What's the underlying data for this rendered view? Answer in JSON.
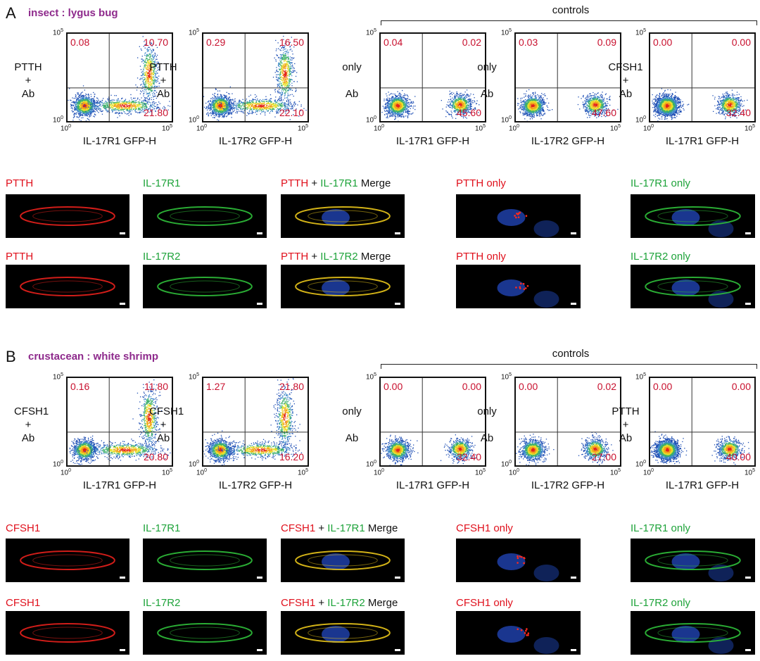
{
  "panel_a": {
    "letter": "A",
    "title": "insect : lygus bug",
    "controls_label": "controls",
    "tick_exponent": "5",
    "tick_base": "10",
    "tick_zero": "0",
    "plots": [
      {
        "ylabel": [
          "PTTH",
          "+",
          "Ab"
        ],
        "xlabel": "IL-17R1 GFP-H",
        "q": {
          "ul": "0.08",
          "ur": "10.70",
          "lr": "21.80"
        }
      },
      {
        "ylabel": [
          "PTTH",
          "+",
          "Ab"
        ],
        "xlabel": "IL-17R2 GFP-H",
        "q": {
          "ul": "0.29",
          "ur": "16.50",
          "lr": "22.10"
        }
      },
      {
        "ylabel": [
          "only",
          "",
          "Ab"
        ],
        "xlabel": "IL-17R1 GFP-H",
        "q": {
          "ul": "0.04",
          "ur": "0.02",
          "lr": "45.60"
        }
      },
      {
        "ylabel": [
          "only",
          "",
          "Ab"
        ],
        "xlabel": "IL-17R2 GFP-H",
        "q": {
          "ul": "0.03",
          "ur": "0.09",
          "lr": "47.60"
        }
      },
      {
        "ylabel": [
          "CFSH1",
          "+",
          "Ab"
        ],
        "xlabel": "IL-17R1 GFP-H",
        "q": {
          "ul": "0.00",
          "ur": "0.00",
          "lr": "32.40"
        }
      }
    ],
    "images_row1": [
      {
        "parts": [
          {
            "t": "PTTH",
            "c": "red"
          }
        ]
      },
      {
        "parts": [
          {
            "t": "IL-17R1",
            "c": "green"
          }
        ]
      },
      {
        "parts": [
          {
            "t": "PTTH",
            "c": "red"
          },
          {
            "t": " + ",
            "c": "black"
          },
          {
            "t": "IL-17R1",
            "c": "green"
          },
          {
            "t": " Merge",
            "c": "black"
          }
        ]
      },
      {
        "parts": [
          {
            "t": "PTTH only",
            "c": "red"
          }
        ]
      },
      {
        "parts": [
          {
            "t": "IL-17R1 only",
            "c": "green"
          }
        ]
      }
    ],
    "images_row2": [
      {
        "parts": [
          {
            "t": "PTTH",
            "c": "red"
          }
        ]
      },
      {
        "parts": [
          {
            "t": "IL-17R2",
            "c": "green"
          }
        ]
      },
      {
        "parts": [
          {
            "t": "PTTH",
            "c": "red"
          },
          {
            "t": " + ",
            "c": "black"
          },
          {
            "t": "IL-17R2",
            "c": "green"
          },
          {
            "t": " Merge",
            "c": "black"
          }
        ]
      },
      {
        "parts": [
          {
            "t": "PTTH only",
            "c": "red"
          }
        ]
      },
      {
        "parts": [
          {
            "t": "IL-17R2 only",
            "c": "green"
          }
        ]
      }
    ]
  },
  "panel_b": {
    "letter": "B",
    "title": "crustacean : white shrimp",
    "controls_label": "controls",
    "plots": [
      {
        "ylabel": [
          "CFSH1",
          "+",
          "Ab"
        ],
        "xlabel": "IL-17R1 GFP-H",
        "q": {
          "ul": "0.16",
          "ur": "11.80",
          "lr": "20.80"
        }
      },
      {
        "ylabel": [
          "CFSH1",
          "+",
          "Ab"
        ],
        "xlabel": "IL-17R2 GFP-H",
        "q": {
          "ul": "1.27",
          "ur": "21.80",
          "lr": "16.20"
        }
      },
      {
        "ylabel": [
          "only",
          "",
          "Ab"
        ],
        "xlabel": "IL-17R1 GFP-H",
        "q": {
          "ul": "0.00",
          "ur": "0.00",
          "lr": "32.40"
        }
      },
      {
        "ylabel": [
          "only",
          "",
          "Ab"
        ],
        "xlabel": "IL-17R2 GFP-H",
        "q": {
          "ul": "0.00",
          "ur": "0.02",
          "lr": "27.00"
        }
      },
      {
        "ylabel": [
          "PTTH",
          "+",
          "Ab"
        ],
        "xlabel": "IL-17R1 GFP-H",
        "q": {
          "ul": "0.00",
          "ur": "0.00",
          "lr": "40.00"
        }
      }
    ],
    "images_row1": [
      {
        "parts": [
          {
            "t": "CFSH1",
            "c": "red"
          }
        ]
      },
      {
        "parts": [
          {
            "t": "IL-17R1",
            "c": "green"
          }
        ]
      },
      {
        "parts": [
          {
            "t": "CFSH1",
            "c": "red"
          },
          {
            "t": " + ",
            "c": "black"
          },
          {
            "t": "IL-17R1",
            "c": "green"
          },
          {
            "t": " Merge",
            "c": "black"
          }
        ]
      },
      {
        "parts": [
          {
            "t": "CFSH1 only",
            "c": "red"
          }
        ]
      },
      {
        "parts": [
          {
            "t": "IL-17R1 only",
            "c": "green"
          }
        ]
      }
    ],
    "images_row2": [
      {
        "parts": [
          {
            "t": "CFSH1",
            "c": "red"
          }
        ]
      },
      {
        "parts": [
          {
            "t": "IL-17R2",
            "c": "green"
          }
        ]
      },
      {
        "parts": [
          {
            "t": "CFSH1",
            "c": "red"
          },
          {
            "t": " + ",
            "c": "black"
          },
          {
            "t": "IL-17R2",
            "c": "green"
          },
          {
            "t": " Merge",
            "c": "black"
          }
        ]
      },
      {
        "parts": [
          {
            "t": "CFSH1 only",
            "c": "red"
          }
        ]
      },
      {
        "parts": [
          {
            "t": "IL-17R2 only",
            "c": "green"
          }
        ]
      }
    ]
  },
  "colors": {
    "quadrant_value": "#c8102e",
    "title": "#8e2a8c",
    "label_red": "#e0101c",
    "label_green": "#1ea33a"
  }
}
